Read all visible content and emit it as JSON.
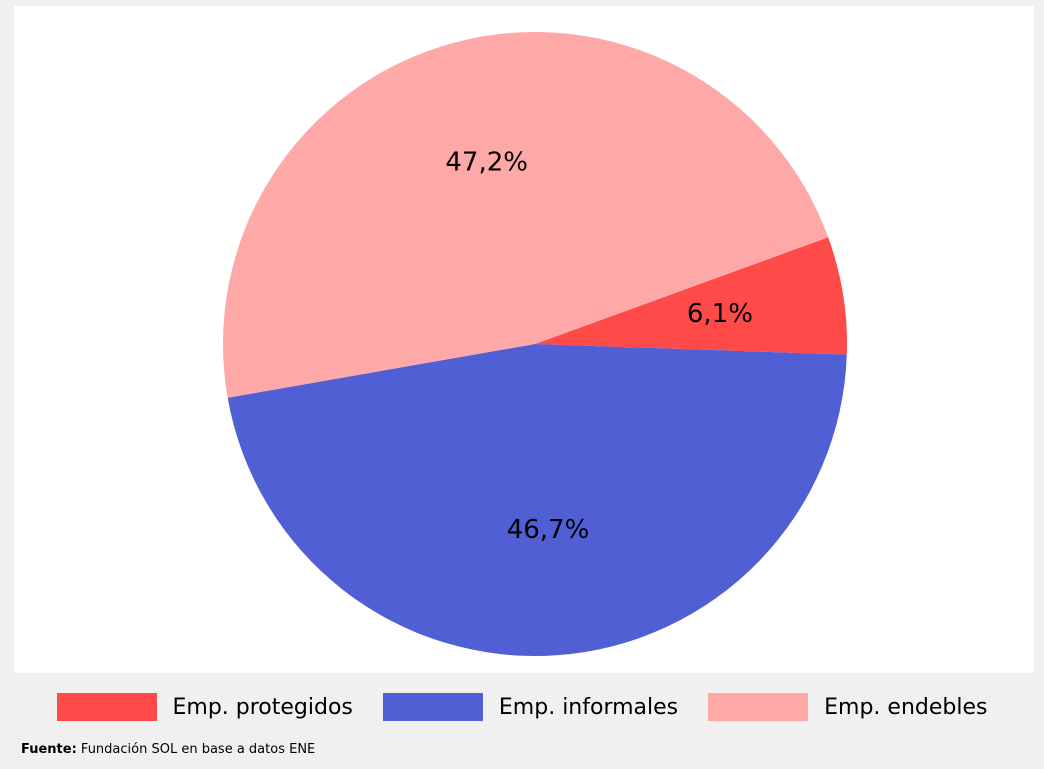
{
  "chart_data": {
    "type": "pie",
    "title": "",
    "categories": [
      "Emp. protegidos",
      "Emp. informales",
      "Emp. endebles"
    ],
    "values": [
      6.1,
      46.7,
      47.2
    ],
    "labels": [
      "6,1%",
      "46,7%",
      "47,2%"
    ],
    "colors": [
      "#ff4a4a",
      "#5060d4",
      "#ffa8a8"
    ],
    "legend_position": "bottom",
    "start_angle_deg": 20
  },
  "legend": {
    "items": [
      {
        "label": "Emp. protegidos",
        "color": "#ff4a4a"
      },
      {
        "label": "Emp. informales",
        "color": "#5060d4"
      },
      {
        "label": "Emp. endebles",
        "color": "#ffa8a8"
      }
    ]
  },
  "source": {
    "prefix": "Fuente:",
    "text": " Fundación SOL en base a datos ENE"
  }
}
